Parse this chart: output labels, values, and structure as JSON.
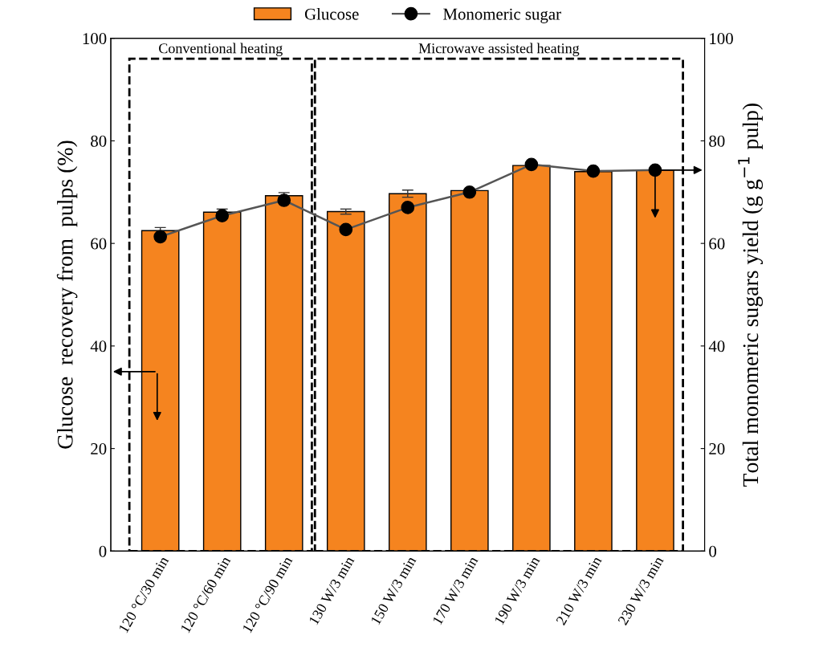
{
  "chart_data": {
    "type": "bar",
    "categories": [
      "120 °C/30 min",
      "120 °C/60 min",
      "120 °C/90 min",
      "130 W/3 min",
      "150 W/3 min",
      "170 W/3 min",
      "190 W/3 min",
      "210 W/3 min",
      "230 W/3 min"
    ],
    "series": [
      {
        "name": "Glucose",
        "color": "#f5841f",
        "values": [
          62.5,
          66.1,
          69.3,
          66.2,
          69.7,
          70.3,
          75.2,
          74.0,
          74.3
        ],
        "errors": [
          0.6,
          0.6,
          0.6,
          0.5,
          0.7,
          0.3,
          null,
          null,
          null
        ]
      },
      {
        "name": "Monomeric sugar",
        "type": "line",
        "axis": "y2",
        "color": "#555555",
        "marker": "circle",
        "values": [
          61.3,
          65.4,
          68.4,
          62.7,
          67.0,
          70.0,
          75.4,
          74.1,
          74.3
        ]
      }
    ],
    "ylabel": "Glucose  recovery from  pulps (%)",
    "y2label": "Total monomeric sugars yield (g g$^{−1}$ pulp)",
    "ylim": [
      0,
      100
    ],
    "yticks": [
      0,
      20,
      40,
      60,
      80,
      100
    ],
    "y2lim": [
      0,
      100
    ],
    "y2ticks": [
      0,
      20,
      40,
      60,
      80,
      100
    ],
    "annotations": [
      "Conventional heating",
      "Microwave assisted heating"
    ],
    "legend": "top",
    "grid": false
  }
}
